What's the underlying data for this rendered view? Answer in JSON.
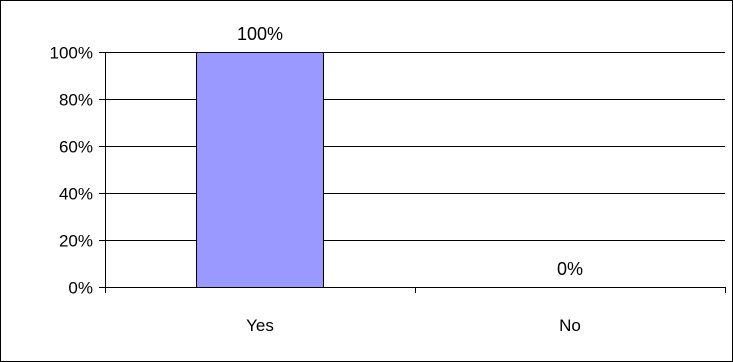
{
  "chart_data": {
    "type": "bar",
    "categories": [
      "Yes",
      "No"
    ],
    "values": [
      100,
      0
    ],
    "data_labels": [
      "100%",
      "0%"
    ],
    "ylim": [
      0,
      100
    ],
    "yticks": [
      0,
      20,
      40,
      60,
      80,
      100
    ],
    "ytick_labels": [
      "0%",
      "20%",
      "40%",
      "60%",
      "80%",
      "100%"
    ],
    "title": "",
    "xlabel": "",
    "ylabel": "",
    "grid": true,
    "legend": "none",
    "bar_color": "#9999ff",
    "bar_outline_color": "#000000",
    "plot_background": "#ffffff"
  }
}
